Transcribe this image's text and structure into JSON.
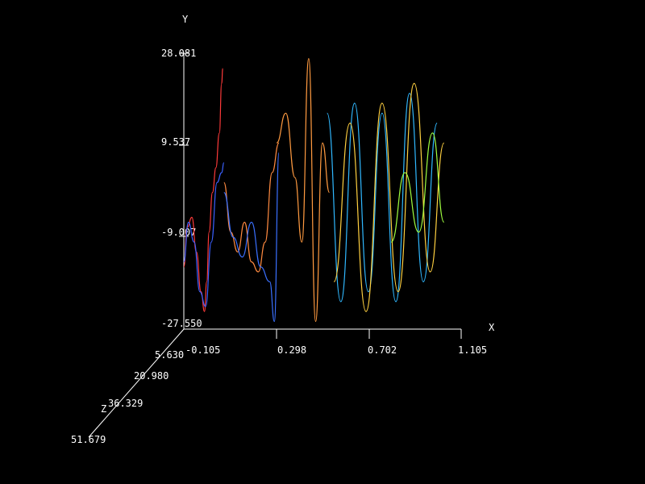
{
  "chart_data": {
    "type": "line",
    "subtype": "3d-line-plot",
    "title": "",
    "axes": {
      "x": {
        "label": "X",
        "ticks": [
          "-0.105",
          "0.298",
          "0.702",
          "1.105"
        ],
        "range": [
          -0.105,
          1.105
        ]
      },
      "y": {
        "label": "Y",
        "ticks": [
          "-27.550",
          "-9.007",
          "9.537",
          "28.081"
        ],
        "range": [
          -27.55,
          28.081
        ]
      },
      "z": {
        "label": "Z",
        "ticks": [
          "5.630",
          "20.980",
          "36.329",
          "51.679"
        ],
        "range": [
          5.63,
          51.679
        ]
      }
    },
    "grid": false,
    "legend": "none",
    "background": "#000000",
    "axis_color": "#ffffff",
    "color_gradient": [
      "#3050ff",
      "#ff3030",
      "#ff8a30",
      "#30c8ff",
      "#ffe040",
      "#80ff40"
    ],
    "series": [
      {
        "color": "#ff3a3a",
        "x": [
          -0.105,
          -0.09,
          -0.07,
          -0.05,
          -0.03,
          -0.015,
          -0.005,
          0.005,
          0.02,
          0.035,
          0.05,
          0.06,
          0.065
        ],
        "y": [
          -15,
          -7,
          -5,
          -12,
          -20,
          -24,
          -18,
          -8,
          0,
          5,
          12,
          22,
          25
        ]
      },
      {
        "color": "#3a60ff",
        "x": [
          -0.105,
          -0.085,
          -0.06,
          -0.035,
          -0.01,
          0.015,
          0.04,
          0.06,
          0.07
        ],
        "y": [
          -14,
          -6,
          -10,
          -20,
          -23,
          -10,
          2,
          4,
          6
        ]
      },
      {
        "color": "#ff8a40",
        "x": [
          0.07,
          0.1,
          0.13,
          0.16,
          0.19,
          0.22,
          0.25,
          0.28,
          0.31
        ],
        "y": [
          2,
          -8,
          -12,
          -6,
          -14,
          -16,
          -10,
          4,
          10
        ]
      },
      {
        "color": "#3a70ff",
        "x": [
          0.07,
          0.11,
          0.15,
          0.19,
          0.23,
          0.27,
          0.29,
          0.31
        ],
        "y": [
          0,
          -9,
          -13,
          -6,
          -15,
          -18,
          -26,
          8
        ]
      },
      {
        "color": "#ff9a40",
        "x": [
          0.3,
          0.34,
          0.38,
          0.41,
          0.44,
          0.47,
          0.5,
          0.53
        ],
        "y": [
          10,
          16,
          3,
          -10,
          27,
          -26,
          10,
          0
        ]
      },
      {
        "color": "#30b8ff",
        "x": [
          0.52,
          0.58,
          0.64,
          0.7,
          0.76,
          0.82,
          0.88,
          0.94,
          1.0
        ],
        "y": [
          16,
          -22,
          18,
          -20,
          16,
          -22,
          20,
          -18,
          14
        ]
      },
      {
        "color": "#ffd040",
        "x": [
          0.55,
          0.62,
          0.69,
          0.76,
          0.83,
          0.9,
          0.97,
          1.03
        ],
        "y": [
          -18,
          14,
          -24,
          18,
          -20,
          22,
          -16,
          10
        ]
      },
      {
        "color": "#a0ff40",
        "x": [
          0.8,
          0.86,
          0.92,
          0.98,
          1.03
        ],
        "y": [
          -10,
          4,
          -8,
          12,
          -6
        ]
      }
    ]
  }
}
